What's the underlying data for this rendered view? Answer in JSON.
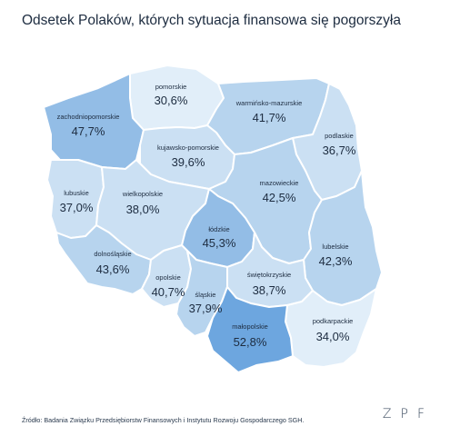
{
  "title": "Odsetek Polaków, których sytuacja finansowa się pogorszyła",
  "legend_colors": {
    "lightest": "#e1eef9",
    "light": "#cbe0f3",
    "medium": "#b7d4ee",
    "dark": "#93bde6",
    "darkest": "#6da6df"
  },
  "regions": [
    {
      "name": "pomorskie",
      "value": "30,6%"
    },
    {
      "name": "warmińsko-mazurskie",
      "value": "41,7%"
    },
    {
      "name": "zachodniopomorskie",
      "value": "47,7%"
    },
    {
      "name": "podlaskie",
      "value": "36,7%"
    },
    {
      "name": "kujawsko-pomorskie",
      "value": "39,6%"
    },
    {
      "name": "mazowieckie",
      "value": "42,5%"
    },
    {
      "name": "lubuskie",
      "value": "37,0%"
    },
    {
      "name": "wielkopolskie",
      "value": "38,0%"
    },
    {
      "name": "łódzkie",
      "value": "45,3%"
    },
    {
      "name": "dolnośląskie",
      "value": "43,6%"
    },
    {
      "name": "lubelskie",
      "value": "42,3%"
    },
    {
      "name": "świętokrzyskie",
      "value": "38,7%"
    },
    {
      "name": "opolskie",
      "value": "40,7%"
    },
    {
      "name": "śląskie",
      "value": "37,9%"
    },
    {
      "name": "podkarpackie",
      "value": "34,0%"
    },
    {
      "name": "małopolskie",
      "value": "52,8%"
    }
  ],
  "source": "Źródło: Badania Związku Przedsiębiorstw Finansowych i Instytutu Rozwoju Gospodarczego SGH.",
  "logo": "ZPF"
}
